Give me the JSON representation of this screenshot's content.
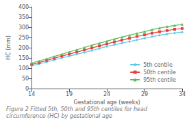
{
  "chart_data": {
    "type": "line",
    "xlabel": "Gestational age (weeks)",
    "ylabel": "HC (mm)",
    "caption": "Figure 2 Fitted 5th, 50th and 95th centiles for head circumference (HC) by gestational age",
    "x": [
      14,
      15,
      16,
      17,
      18,
      19,
      20,
      21,
      22,
      23,
      24,
      25,
      26,
      27,
      28,
      29,
      30,
      31,
      32,
      33,
      34
    ],
    "series": [
      {
        "name": "5th centile",
        "color": "#5bc8e8",
        "marker": "diamond",
        "values": [
          112,
          120,
          130,
          140,
          150,
          159,
          168,
          177,
          186,
          196,
          206,
          214,
          222,
          230,
          238,
          246,
          254,
          261,
          267,
          272,
          276
        ]
      },
      {
        "name": "50th centile",
        "color": "#e84040",
        "marker": "square",
        "values": [
          118,
          127,
          138,
          148,
          159,
          169,
          179,
          189,
          199,
          209,
          219,
          228,
          237,
          246,
          255,
          263,
          271,
          278,
          284,
          290,
          294
        ]
      },
      {
        "name": "95th centile",
        "color": "#5cb85c",
        "marker": "triangle",
        "values": [
          125,
          135,
          146,
          157,
          168,
          179,
          190,
          201,
          212,
          222,
          232,
          242,
          252,
          261,
          270,
          279,
          288,
          296,
          303,
          309,
          314
        ]
      }
    ],
    "xlim": [
      14,
      34
    ],
    "ylim": [
      0,
      400
    ],
    "xticks": [
      14,
      19,
      24,
      29,
      34
    ],
    "yticks": [
      0,
      50,
      100,
      150,
      200,
      250,
      300,
      350,
      400
    ],
    "grid": false,
    "legend": "lower right"
  }
}
